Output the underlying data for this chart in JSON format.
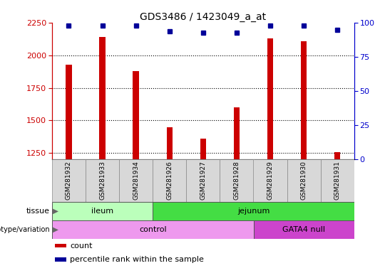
{
  "title": "GDS3486 / 1423049_a_at",
  "samples": [
    "GSM281932",
    "GSM281933",
    "GSM281934",
    "GSM281926",
    "GSM281927",
    "GSM281928",
    "GSM281929",
    "GSM281930",
    "GSM281931"
  ],
  "counts": [
    1930,
    2140,
    1880,
    1450,
    1360,
    1600,
    2130,
    2110,
    1255
  ],
  "percentile_ranks": [
    98,
    98,
    98,
    94,
    93,
    93,
    98,
    98,
    95
  ],
  "ylim_left": [
    1200,
    2250
  ],
  "yticks_left": [
    1250,
    1500,
    1750,
    2000,
    2250
  ],
  "ylim_right": [
    0,
    100
  ],
  "yticks_right": [
    0,
    25,
    50,
    75,
    100
  ],
  "bar_color": "#cc0000",
  "dot_color": "#000099",
  "tissue_labels": [
    {
      "label": "ileum",
      "start": 0,
      "end": 3,
      "color": "#bbffbb"
    },
    {
      "label": "jejunum",
      "start": 3,
      "end": 9,
      "color": "#44dd44"
    }
  ],
  "genotype_labels": [
    {
      "label": "control",
      "start": 0,
      "end": 6,
      "color": "#ee99ee"
    },
    {
      "label": "GATA4 null",
      "start": 6,
      "end": 9,
      "color": "#cc44cc"
    }
  ],
  "legend_items": [
    {
      "color": "#cc0000",
      "label": "count"
    },
    {
      "color": "#000099",
      "label": "percentile rank within the sample"
    }
  ],
  "left_tick_color": "#cc0000",
  "right_tick_color": "#0000cc",
  "bar_width": 0.18
}
